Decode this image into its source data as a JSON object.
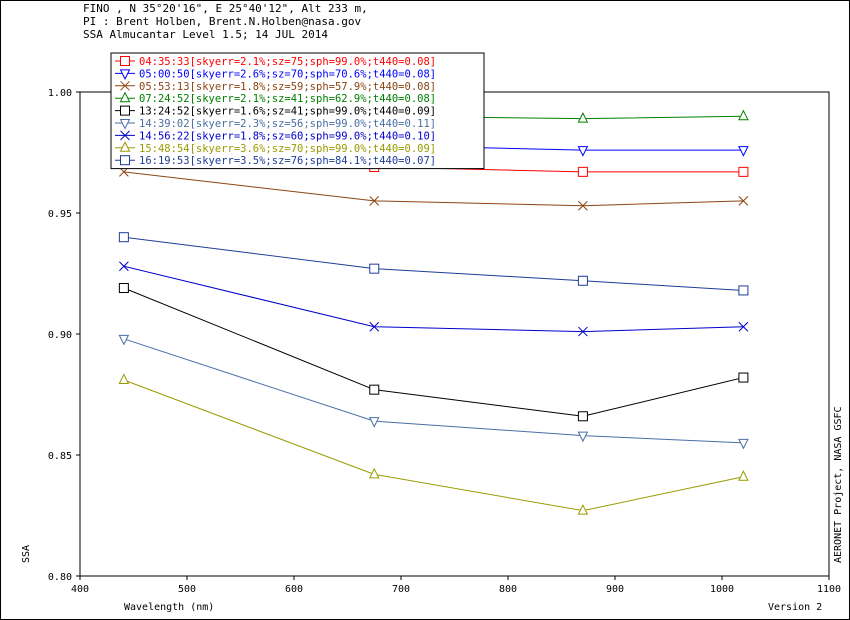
{
  "header": {
    "line1": "FINO , N 35°20'16\", E 25°40'12\", Alt 233 m,",
    "line2": "PI : Brent Holben, Brent.N.Holben@nasa.gov",
    "line3": "SSA Almucantar Level 1.5; 14 JUL 2014"
  },
  "footer": {
    "version": "Version 2",
    "credit": "AERONET Project, NASA GSFC"
  },
  "chart_data": {
    "type": "line",
    "xlabel": "Wavelength (nm)",
    "ylabel": "SSA",
    "xlim": [
      400,
      1100
    ],
    "ylim": [
      0.8,
      1.0
    ],
    "xticks": [
      "400",
      "500",
      "600",
      "700",
      "800",
      "900",
      "1000",
      "1100"
    ],
    "yticks": [
      "0.80",
      "0.85",
      "0.90",
      "0.95",
      "1.00"
    ],
    "legend_position": "top-left",
    "x": [
      441,
      675,
      870,
      1020
    ],
    "series": [
      {
        "name": "04:35:33[skyerr=2.1%;sz=75;sph=99.0%;t440=0.08]",
        "color": "#ff0000",
        "marker": "square",
        "values": [
          0.975,
          0.969,
          0.967,
          0.967
        ]
      },
      {
        "name": "05:00:50[skyerr=2.6%;sz=70;sph=70.6%;t440=0.08]",
        "color": "#0000ff",
        "marker": "tri-down",
        "values": [
          0.985,
          0.978,
          0.976,
          0.976
        ]
      },
      {
        "name": "05:53:13[skyerr=1.8%;sz=59;sph=57.9%;t440=0.08]",
        "color": "#8b4513",
        "marker": "x",
        "values": [
          0.967,
          0.955,
          0.953,
          0.955
        ]
      },
      {
        "name": "07:24:52[skyerr=2.1%;sz=41;sph=62.9%;t440=0.08]",
        "color": "#008000",
        "marker": "tri-up",
        "values": [
          0.992,
          0.99,
          0.989,
          0.99
        ]
      },
      {
        "name": "13:24:52[skyerr=1.6%;sz=41;sph=99.0%;t440=0.09]",
        "color": "#000000",
        "marker": "square",
        "values": [
          0.919,
          0.877,
          0.866,
          0.882
        ]
      },
      {
        "name": "14:39:02[skyerr=2.3%;sz=56;sph=99.0%;t440=0.11]",
        "color": "#4a6fa5",
        "marker": "tri-down",
        "values": [
          0.898,
          0.864,
          0.858,
          0.855
        ]
      },
      {
        "name": "14:56:22[skyerr=1.8%;sz=60;sph=99.0%;t440=0.10]",
        "color": "#0000cd",
        "marker": "x",
        "values": [
          0.928,
          0.903,
          0.901,
          0.903
        ]
      },
      {
        "name": "15:48:54[skyerr=3.6%;sz=70;sph=99.0%;t440=0.09]",
        "color": "#9a9a00",
        "marker": "tri-up",
        "values": [
          0.881,
          0.842,
          0.827,
          0.841
        ]
      },
      {
        "name": "16:19:53[skyerr=3.5%;sz=76;sph=84.1%;t440=0.07]",
        "color": "#1e3c9a",
        "marker": "square",
        "values": [
          0.94,
          0.927,
          0.922,
          0.918
        ]
      }
    ]
  }
}
